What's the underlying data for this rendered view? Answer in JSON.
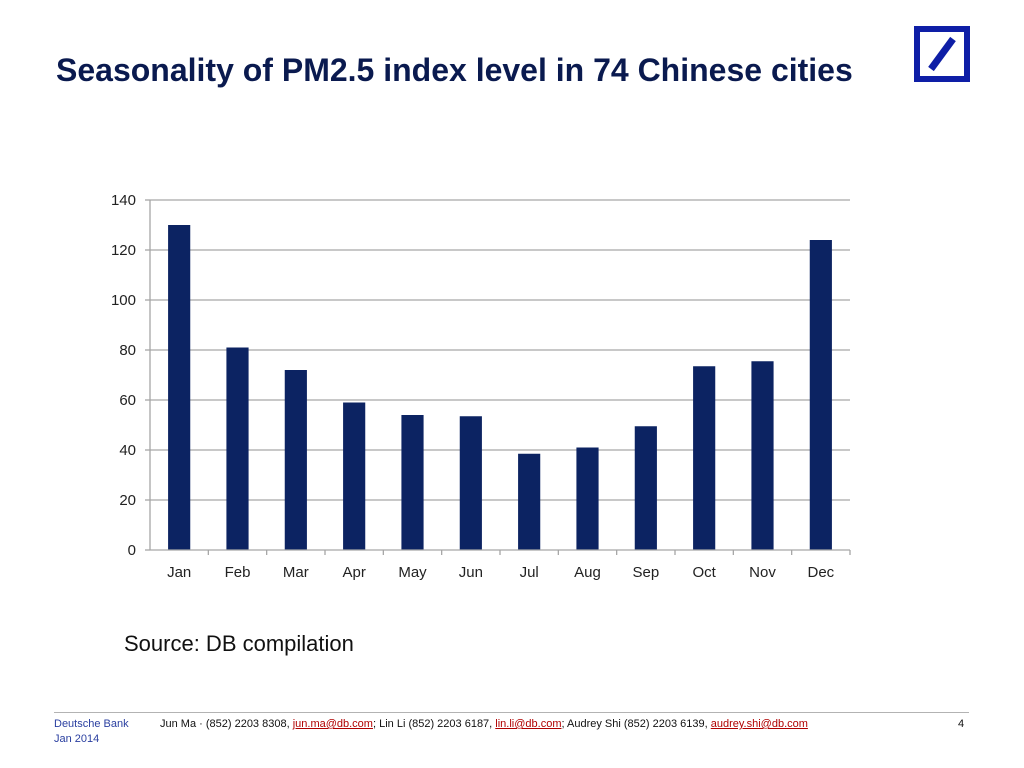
{
  "slide": {
    "title": "Seasonality of PM2.5 index level in 74 Chinese cities",
    "source": "Source: DB compilation",
    "page_number": "4"
  },
  "brand": {
    "logo_icon": "deutsche-bank-logo",
    "color": "#0e1ea6"
  },
  "footer": {
    "org": "Deutsche Bank",
    "date": "Jan 2014",
    "contacts": [
      {
        "prefix": "Jun Ma · (852) 2203 8308, ",
        "email": "jun.ma@db.com",
        "suffix": ";  "
      },
      {
        "prefix": "Lin Li (852) 2203 6187, ",
        "email": "lin.li@db.com",
        "suffix": ";  "
      },
      {
        "prefix": "Audrey Shi (852) 2203 6139, ",
        "email": "audrey.shi@db.com",
        "suffix": ""
      }
    ]
  },
  "chart_data": {
    "type": "bar",
    "categories": [
      "Jan",
      "Feb",
      "Mar",
      "Apr",
      "May",
      "Jun",
      "Jul",
      "Aug",
      "Sep",
      "Oct",
      "Nov",
      "Dec"
    ],
    "values": [
      130,
      81,
      72,
      59,
      54,
      53.5,
      38.5,
      41,
      49.5,
      73.5,
      75.5,
      124
    ],
    "title": "",
    "xlabel": "",
    "ylabel": "",
    "ylim": [
      0,
      140
    ],
    "yticks": [
      0,
      20,
      40,
      60,
      80,
      100,
      120,
      140
    ],
    "grid": true,
    "legend": "none",
    "bar_color": "#0c2362",
    "grid_color": "#a6a6a6"
  }
}
